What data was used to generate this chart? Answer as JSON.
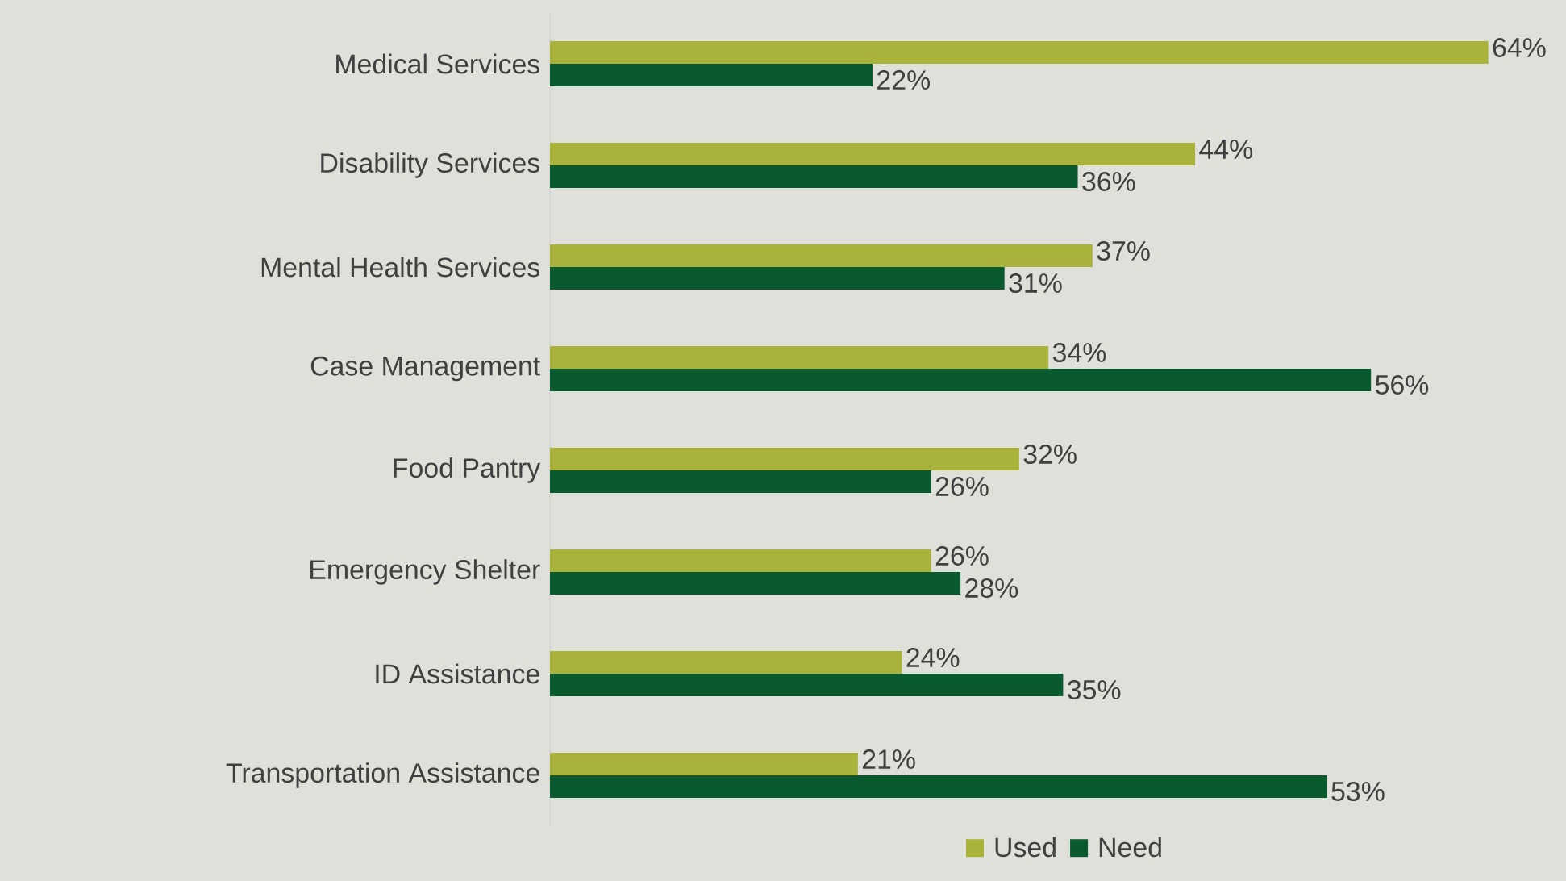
{
  "chart_data": {
    "type": "bar",
    "orientation": "horizontal",
    "categories": [
      "Medical Services",
      "Disability Services",
      "Mental Health Services",
      "Case Management",
      "Food Pantry",
      "Emergency Shelter",
      "ID Assistance",
      "Transportation Assistance"
    ],
    "series": [
      {
        "name": "Used",
        "color": "#a9b23a",
        "values": [
          64,
          44,
          37,
          34,
          32,
          26,
          24,
          21
        ],
        "value_labels": [
          "64%",
          "44%",
          "37%",
          "34%",
          "32%",
          "26%",
          "24%",
          "21%"
        ]
      },
      {
        "name": "Need",
        "color": "#0a5a2f",
        "values": [
          22,
          36,
          31,
          56,
          26,
          28,
          35,
          53
        ],
        "value_labels": [
          "22%",
          "36%",
          "31%",
          "56%",
          "26%",
          "28%",
          "35%",
          "53%"
        ]
      }
    ],
    "tick_labels": "y",
    "legend": "bottom"
  }
}
